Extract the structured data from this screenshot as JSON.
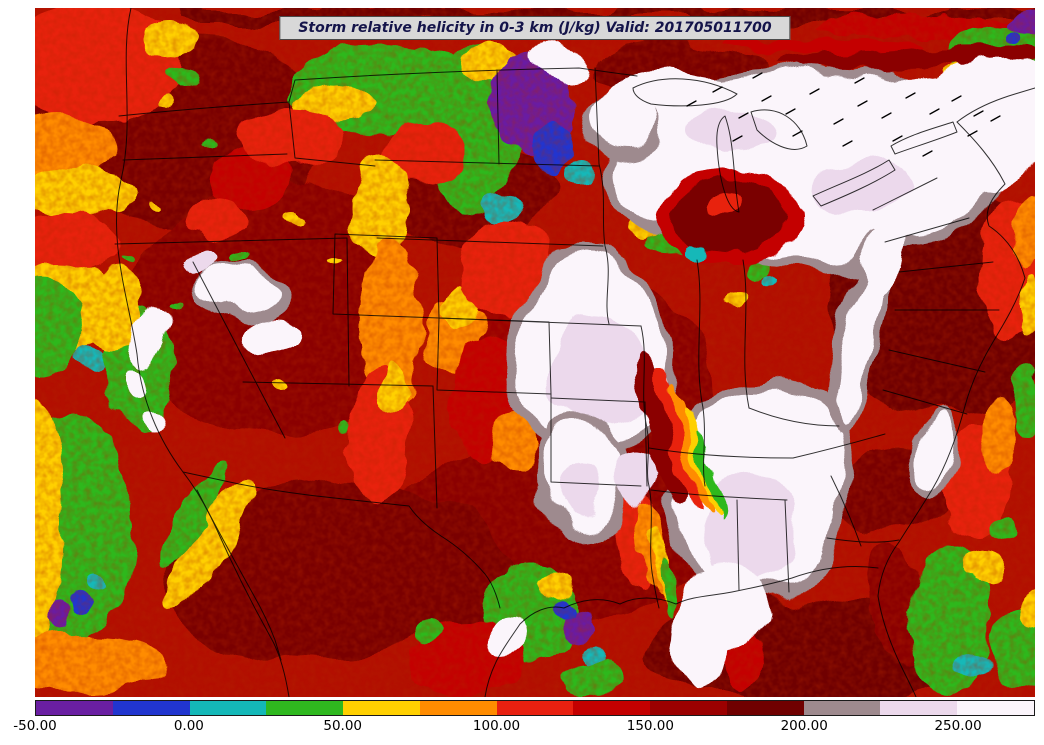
{
  "title": {
    "text": "Storm relative helicity in 0-3 km (J/kg) Valid: 201705011700",
    "variable": "Storm relative helicity in 0-3 km",
    "units": "J/kg",
    "valid_time": "201705011700"
  },
  "colorbar": {
    "min": -50,
    "max": 275,
    "interval": 25,
    "ticks": [
      {
        "value": -50,
        "label": "-50.00"
      },
      {
        "value": 0,
        "label": "0.00"
      },
      {
        "value": 50,
        "label": "50.00"
      },
      {
        "value": 100,
        "label": "100.00"
      },
      {
        "value": 150,
        "label": "150.00"
      },
      {
        "value": 200,
        "label": "200.00"
      },
      {
        "value": 250,
        "label": "250.00"
      }
    ],
    "segment_colors": [
      "#6a1fa2",
      "#2135cf",
      "#14b8b8",
      "#2fb81f",
      "#ffd000",
      "#ff8c00",
      "#e82010",
      "#c40000",
      "#9b0000",
      "#700000",
      "#9e8a8e",
      "#ecd9ec",
      "#fbf5fb"
    ]
  },
  "chart_data": {
    "type": "heatmap",
    "title": "Storm relative helicity in 0-3 km (J/kg) Valid: 201705011700",
    "field": "storm relative helicity 0-3 km",
    "units": "J/kg",
    "region": "Continental United States (filled-contour model output map)",
    "levels": [
      -50,
      -25,
      0,
      25,
      50,
      75,
      100,
      125,
      150,
      175,
      200,
      225,
      250,
      275
    ],
    "level_colors": [
      "#6a1fa2",
      "#2135cf",
      "#14b8b8",
      "#2fb81f",
      "#ffd000",
      "#ff8c00",
      "#e82010",
      "#c40000",
      "#9b0000",
      "#700000",
      "#9e8a8e",
      "#ecd9ec",
      "#fbf5fb"
    ],
    "colorbar_tick_labels": [
      "-50.00",
      "0.00",
      "50.00",
      "100.00",
      "150.00",
      "200.00",
      "250.00"
    ],
    "legend_position": "bottom",
    "notes_visible_features": "High helicity (dark red to white >150-275) over most of CONUS; pale maxima over Great Lakes, central Plains, Southeast; negative pockets (purple/blue/cyan) over northern Plains, Gulf coast, Pacific"
  }
}
